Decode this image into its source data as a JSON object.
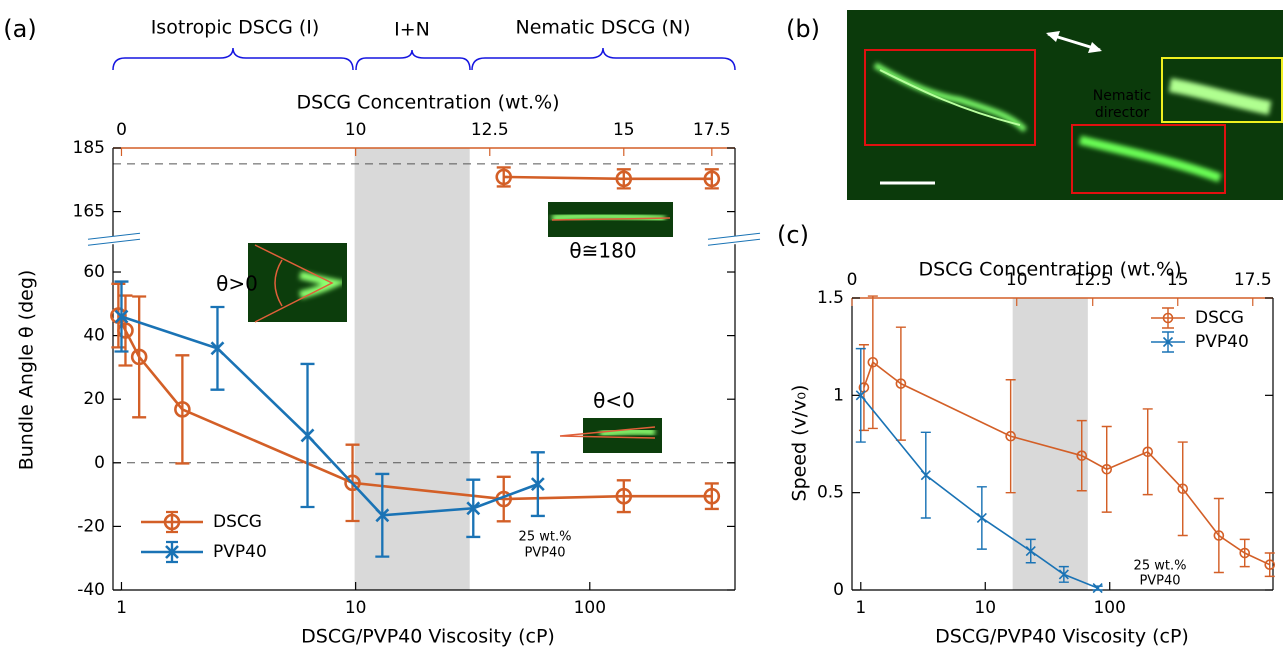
{
  "chart_data": [
    {
      "type": "line",
      "panel_label": "(a)",
      "phase_labels": [
        "Isotropic DSCG (I)",
        "I+N",
        "Nematic DSCG (N)"
      ],
      "x2label": "DSCG Concentration (wt.%)",
      "x2color": "#d35f27",
      "xlabel": "DSCG/PVP40 Viscosity (cP)",
      "ylabel": "Bundle Angle θ (deg)",
      "xscale": "log",
      "xlim": [
        0.92,
        417
      ],
      "xticks": [
        1,
        10,
        100
      ],
      "x2ticks": [
        {
          "value": 1,
          "label": "0"
        },
        {
          "value": 10,
          "label": "10"
        },
        {
          "value": 37.4,
          "label": "12.5"
        },
        {
          "value": 139.7,
          "label": "15"
        },
        {
          "value": 332,
          "label": "17.5"
        }
      ],
      "ylim": [
        -40,
        185
      ],
      "y_break": [
        70,
        156
      ],
      "yticks": [
        -40,
        -20,
        0,
        20,
        40,
        60,
        165,
        185
      ],
      "shaded_region": [
        9.9,
        30.7
      ],
      "hlines": [
        0,
        180
      ],
      "legend": "lower left",
      "annotations": [
        "θ>0",
        "θ≅180",
        "θ<0",
        "25 wt.%",
        "PVP40"
      ],
      "series": [
        {
          "name": "DSCG",
          "color": "#d35f27",
          "marker": "circle",
          "x": [
            0.97,
            1.04,
            1.19,
            1.82,
            9.7,
            42.9,
            139.7,
            332,
            null,
            42.9,
            139.7,
            332
          ],
          "values": [
            46.3,
            41.6,
            33.3,
            16.8,
            -6.3,
            -11.4,
            -10.5,
            -10.5,
            null,
            175.9,
            175.3,
            175.3
          ],
          "errors": [
            10,
            11,
            19,
            17,
            12,
            7,
            5,
            4,
            null,
            3,
            3,
            3
          ]
        },
        {
          "name": "PVP40",
          "color": "#1a73b5",
          "marker": "x",
          "x": [
            1.0,
            2.57,
            6.23,
            13.0,
            31.8,
            60
          ],
          "values": [
            46,
            36,
            8.6,
            -16.5,
            -14.3,
            -6.7
          ],
          "errors": [
            11,
            13,
            22.5,
            13,
            9,
            10
          ]
        }
      ]
    },
    {
      "type": "line",
      "panel_label": "(c)",
      "x2label": "DSCG Concentration (wt.%)",
      "x2color": "#d35f27",
      "xlabel": "DSCG/PVP40 Viscosity (cP)",
      "ylabel": "Speed (v/v₀)",
      "xscale": "log",
      "xlim": [
        0.85,
        2050
      ],
      "xticks": [
        1,
        10,
        100
      ],
      "x2ticks": [
        {
          "value": 0.85,
          "label": "0"
        },
        {
          "value": 17.9,
          "label": "10"
        },
        {
          "value": 73,
          "label": "12.5"
        },
        {
          "value": 352,
          "label": "15"
        },
        {
          "value": 1410,
          "label": "17.5"
        }
      ],
      "ylim": [
        0,
        1.5
      ],
      "yticks": [
        0,
        0.5,
        1,
        1.5
      ],
      "shaded_region": [
        16.6,
        66.7
      ],
      "legend": "upper right",
      "annotations": [
        "25 wt.%",
        "PVP40"
      ],
      "series": [
        {
          "name": "DSCG",
          "color": "#d35f27",
          "marker": "circle",
          "x": [
            1.06,
            1.25,
            2.1,
            16.0,
            59.6,
            94.6,
            202,
            386,
            753,
            1215,
            1930
          ],
          "values": [
            1.04,
            1.17,
            1.06,
            0.79,
            0.69,
            0.62,
            0.71,
            0.52,
            0.28,
            0.19,
            0.13
          ],
          "errors": [
            0.22,
            0.34,
            0.29,
            0.29,
            0.18,
            0.22,
            0.22,
            0.24,
            0.19,
            0.07,
            0.06
          ]
        },
        {
          "name": "PVP40",
          "color": "#1a73b5",
          "marker": "x",
          "x": [
            1.0,
            3.33,
            9.39,
            23.2,
            42.8,
            80
          ],
          "values": [
            1.0,
            0.59,
            0.37,
            0.2,
            0.08,
            0.01
          ],
          "errors": [
            0.24,
            0.22,
            0.16,
            0.06,
            0.04,
            0.01
          ]
        }
      ]
    }
  ],
  "panel_b": {
    "label": "(b)",
    "annotation": [
      "Nematic",
      "director"
    ]
  }
}
